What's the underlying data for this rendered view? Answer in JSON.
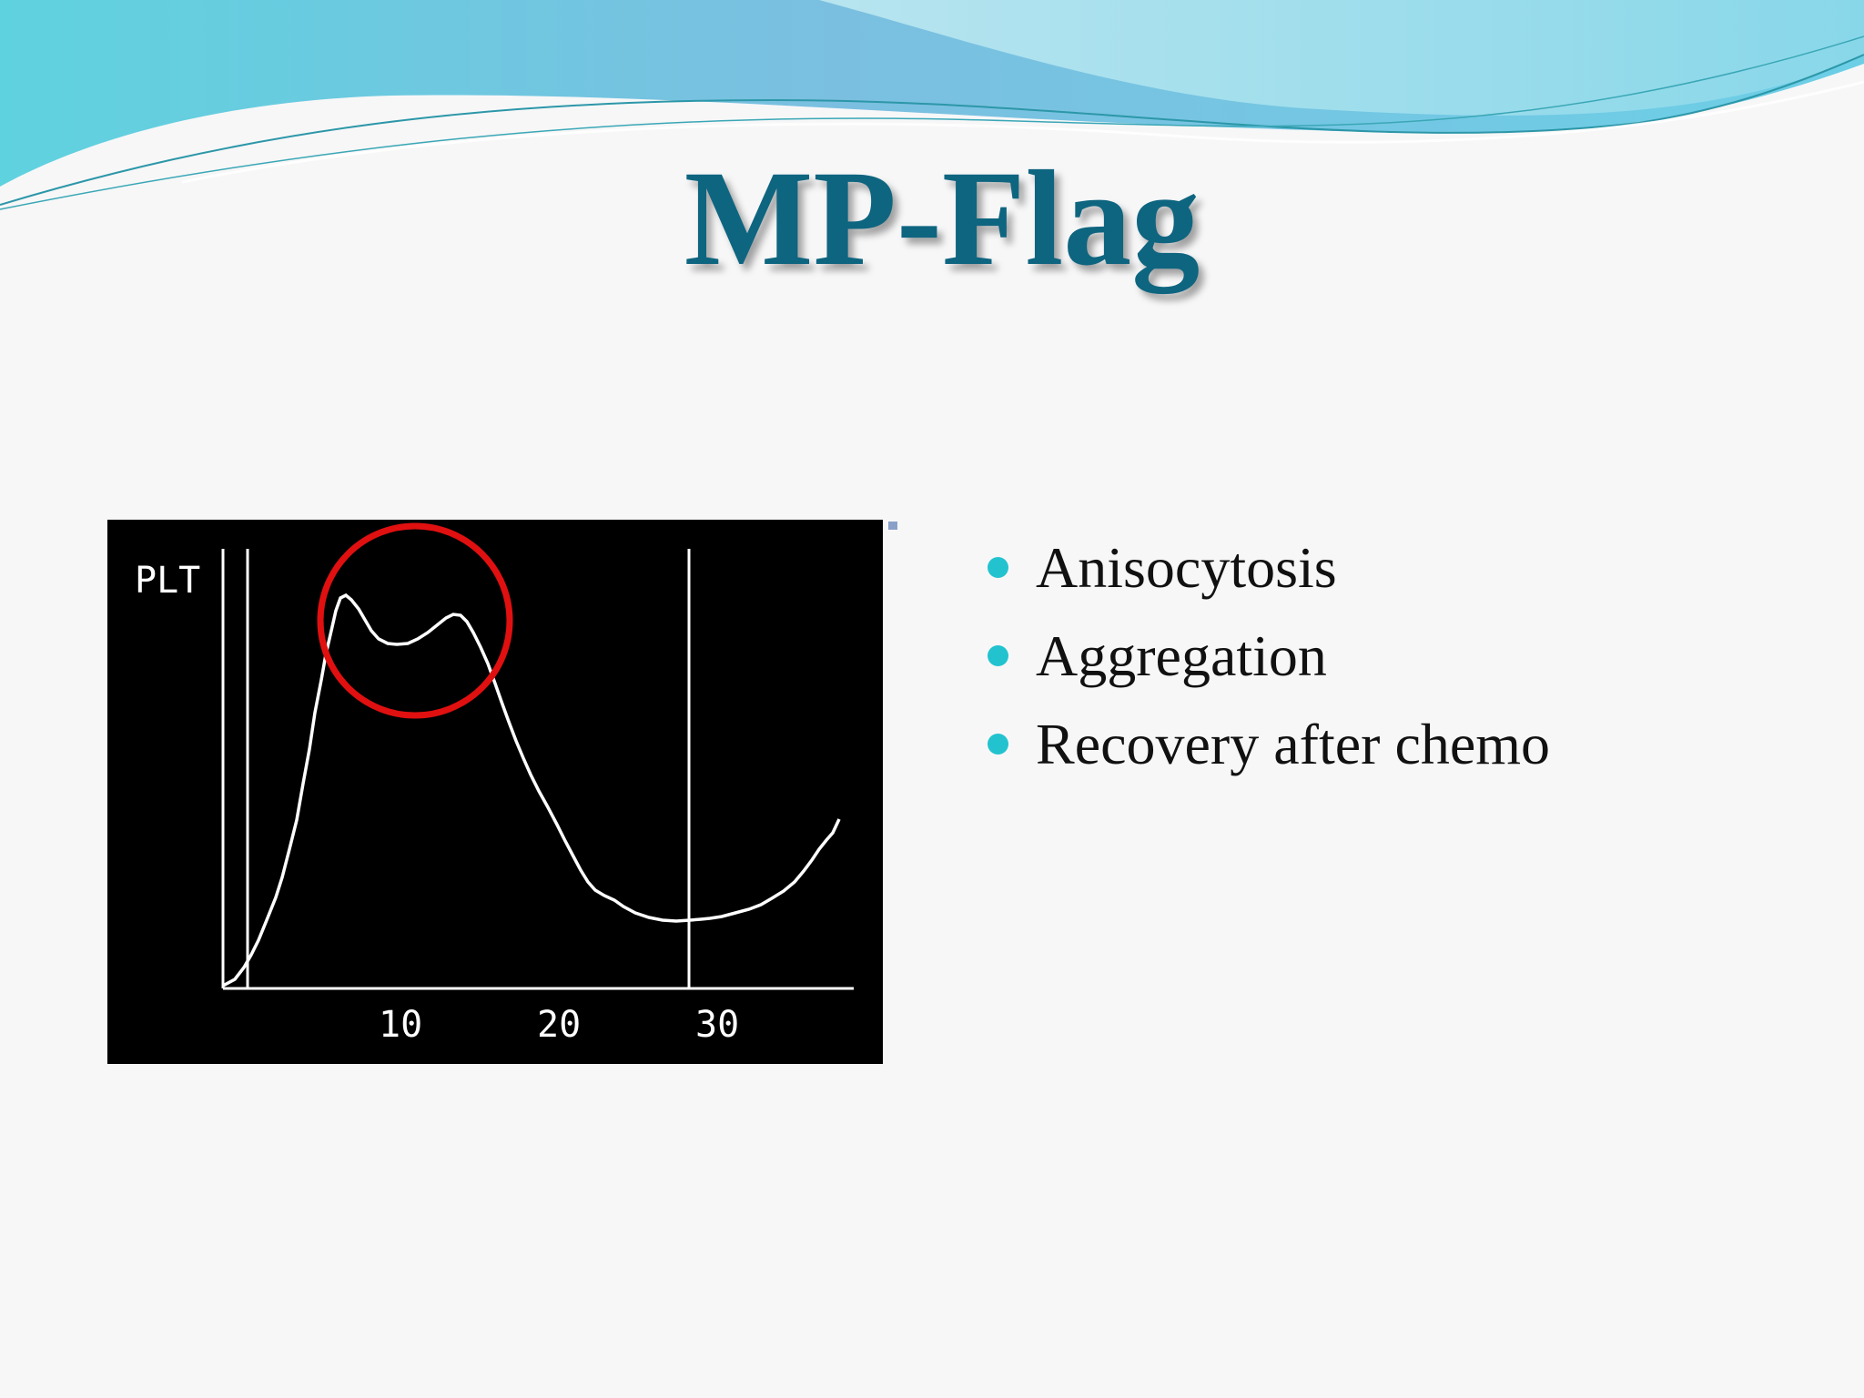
{
  "slide": {
    "title": "MP-Flag",
    "title_color": "#0e6580",
    "bullet_color": "#22c3cf"
  },
  "bullets": [
    "Anisocytosis",
    "Aggregation",
    "Recovery after chemo"
  ],
  "histogram": {
    "label": "PLT",
    "x_ticks": [
      "10",
      "20",
      "30"
    ],
    "circle_color": "#e01010"
  }
}
